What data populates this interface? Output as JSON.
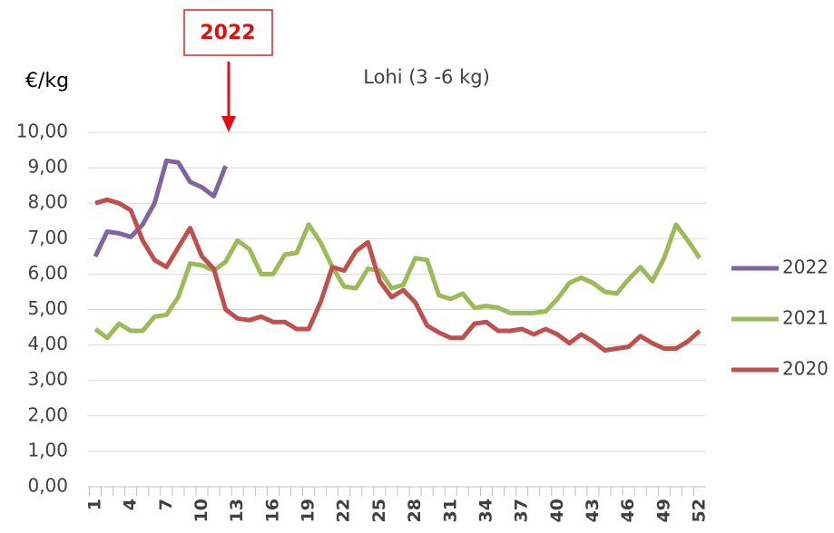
{
  "chart_data": {
    "type": "line",
    "title": "Lohi (3 -6 kg)",
    "y_label": "€/kg",
    "annotation": {
      "text": "2022"
    },
    "x": [
      1,
      2,
      3,
      4,
      5,
      6,
      7,
      8,
      9,
      10,
      11,
      12,
      13,
      14,
      15,
      16,
      17,
      18,
      19,
      20,
      21,
      22,
      23,
      24,
      25,
      26,
      27,
      28,
      29,
      30,
      31,
      32,
      33,
      34,
      35,
      36,
      37,
      38,
      39,
      40,
      41,
      42,
      43,
      44,
      45,
      46,
      47,
      48,
      49,
      50,
      51,
      52
    ],
    "xlim": [
      1,
      52
    ],
    "xticks": [
      1,
      4,
      7,
      10,
      13,
      16,
      19,
      22,
      25,
      28,
      31,
      34,
      37,
      40,
      43,
      46,
      49,
      52
    ],
    "ylim": [
      0,
      10
    ],
    "yticks": [
      {
        "value": 0,
        "label": "0,00"
      },
      {
        "value": 1,
        "label": "1,00"
      },
      {
        "value": 2,
        "label": "2,00"
      },
      {
        "value": 3,
        "label": "3,00"
      },
      {
        "value": 4,
        "label": "4,00"
      },
      {
        "value": 5,
        "label": "5,00"
      },
      {
        "value": 6,
        "label": "6,00"
      },
      {
        "value": 7,
        "label": "7,00"
      },
      {
        "value": 8,
        "label": "8,00"
      },
      {
        "value": 9,
        "label": "9,00"
      },
      {
        "value": 10,
        "label": "10,00"
      }
    ],
    "grid": true,
    "legend": "right",
    "series": [
      {
        "name": "2022",
        "color": "#8064a2",
        "values": [
          6.5,
          7.2,
          7.15,
          7.05,
          7.4,
          8.0,
          9.2,
          9.15,
          8.6,
          8.45,
          8.2,
          9.05,
          null,
          null,
          null,
          null,
          null,
          null,
          null,
          null,
          null,
          null,
          null,
          null,
          null,
          null,
          null,
          null,
          null,
          null,
          null,
          null,
          null,
          null,
          null,
          null,
          null,
          null,
          null,
          null,
          null,
          null,
          null,
          null,
          null,
          null,
          null,
          null,
          null,
          null,
          null,
          null
        ]
      },
      {
        "name": "2021",
        "color": "#9bbb59",
        "values": [
          4.45,
          4.2,
          4.6,
          4.4,
          4.4,
          4.8,
          4.85,
          5.35,
          6.3,
          6.25,
          6.1,
          6.35,
          6.95,
          6.7,
          6.0,
          6.0,
          6.55,
          6.6,
          7.4,
          6.9,
          6.2,
          5.65,
          5.6,
          6.15,
          6.1,
          5.6,
          5.7,
          6.45,
          6.4,
          5.4,
          5.3,
          5.45,
          5.05,
          5.1,
          5.05,
          4.9,
          4.9,
          4.9,
          4.95,
          5.3,
          5.75,
          5.9,
          5.75,
          5.5,
          5.45,
          5.85,
          6.2,
          5.8,
          6.45,
          7.4,
          6.95,
          6.45
        ]
      },
      {
        "name": "2020",
        "color": "#c0504d",
        "values": [
          8.0,
          8.1,
          8.0,
          7.8,
          6.95,
          6.4,
          6.2,
          6.75,
          7.3,
          6.5,
          6.15,
          5.0,
          4.75,
          4.7,
          4.8,
          4.65,
          4.65,
          4.45,
          4.45,
          5.2,
          6.2,
          6.1,
          6.65,
          6.9,
          5.8,
          5.35,
          5.55,
          5.2,
          4.55,
          4.35,
          4.2,
          4.2,
          4.6,
          4.65,
          4.4,
          4.4,
          4.45,
          4.3,
          4.45,
          4.3,
          4.05,
          4.3,
          4.1,
          3.85,
          3.9,
          3.95,
          4.25,
          4.05,
          3.9,
          3.9,
          4.1,
          4.4
        ]
      }
    ]
  }
}
